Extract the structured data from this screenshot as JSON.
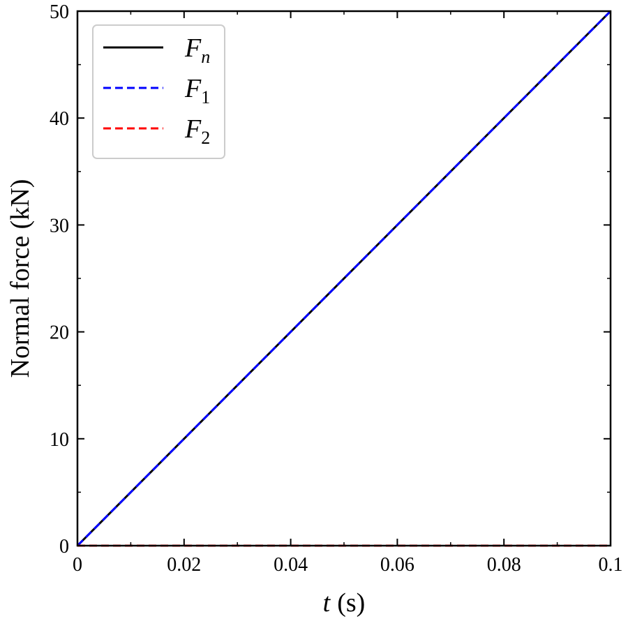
{
  "chart_data": {
    "type": "line",
    "title": "",
    "xlabel": {
      "var": "t",
      "unit": "(s)"
    },
    "ylabel": "Normal force (kN)",
    "xlim": [
      0,
      0.1
    ],
    "ylim": [
      0,
      50
    ],
    "x_ticks": [
      0,
      0.02,
      0.04,
      0.06,
      0.08,
      0.1
    ],
    "x_tick_labels": [
      "0",
      "0.02",
      "0.04",
      "0.06",
      "0.08",
      "0.1"
    ],
    "x_minor_ticks": [
      0.01,
      0.03,
      0.05,
      0.07,
      0.09
    ],
    "y_ticks": [
      0,
      10,
      20,
      30,
      40,
      50
    ],
    "y_tick_labels": [
      "0",
      "10",
      "20",
      "30",
      "40",
      "50"
    ],
    "y_minor_ticks": [
      5,
      15,
      25,
      35,
      45
    ],
    "grid": false,
    "legend_position": "top-left",
    "series": [
      {
        "name": "F_n",
        "label_main": "F",
        "label_sub": "n",
        "color": "#000000",
        "style": "solid",
        "x": [
          0,
          0.1
        ],
        "y": [
          0,
          50
        ]
      },
      {
        "name": "F_1",
        "label_main": "F",
        "label_sub": "1",
        "color": "#0000ff",
        "style": "dashed",
        "x": [
          0,
          0.1
        ],
        "y": [
          0,
          50
        ]
      },
      {
        "name": "F_2",
        "label_main": "F",
        "label_sub": "2",
        "color": "#ff0000",
        "style": "dashed",
        "x": [
          0,
          0.1
        ],
        "y": [
          0,
          0
        ]
      }
    ]
  }
}
